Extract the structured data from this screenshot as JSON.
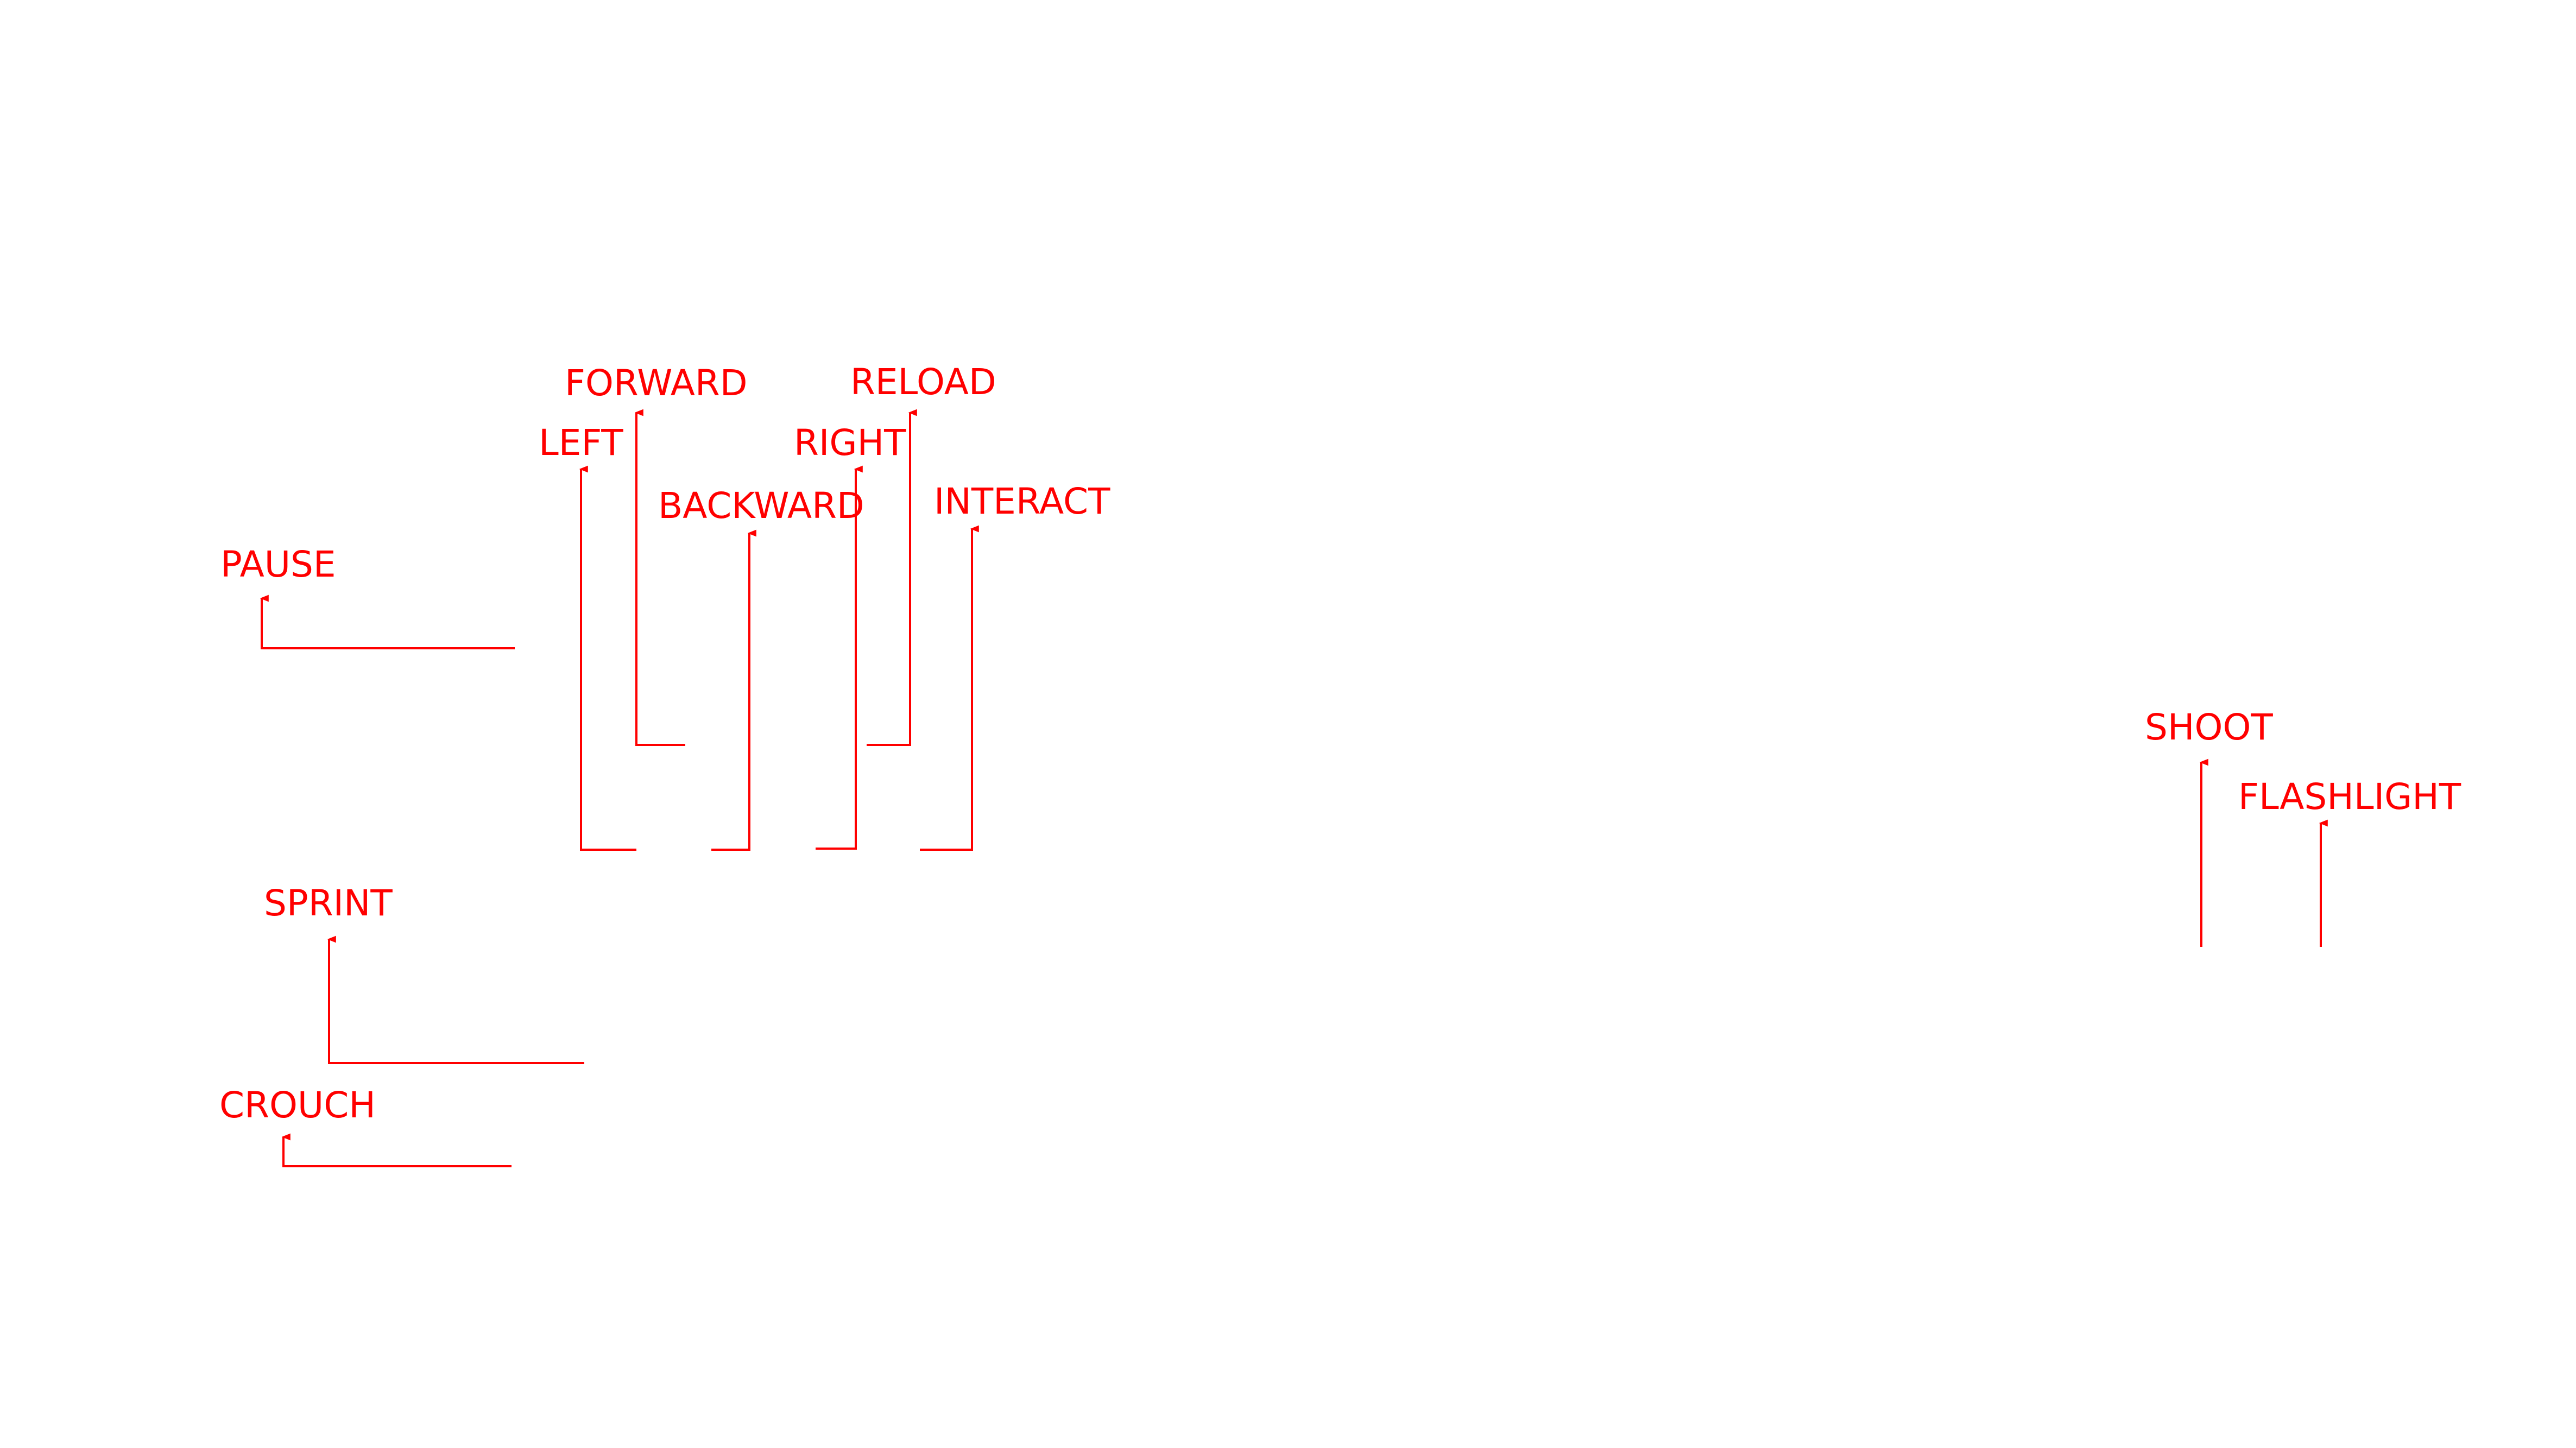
{
  "diagram": {
    "line_color": "#ff0000",
    "text_color": "#ff0000",
    "background": "#ffffff",
    "labels": {
      "forward": "FORWARD",
      "reload": "RELOAD",
      "left": "LEFT",
      "right": "RIGHT",
      "backward": "BACKWARD",
      "interact": "INTERACT",
      "pause": "PAUSE",
      "sprint": "SPRINT",
      "crouch": "CROUCH",
      "shoot": "SHOOT",
      "flashlight": "FLASHLIGHT"
    }
  }
}
